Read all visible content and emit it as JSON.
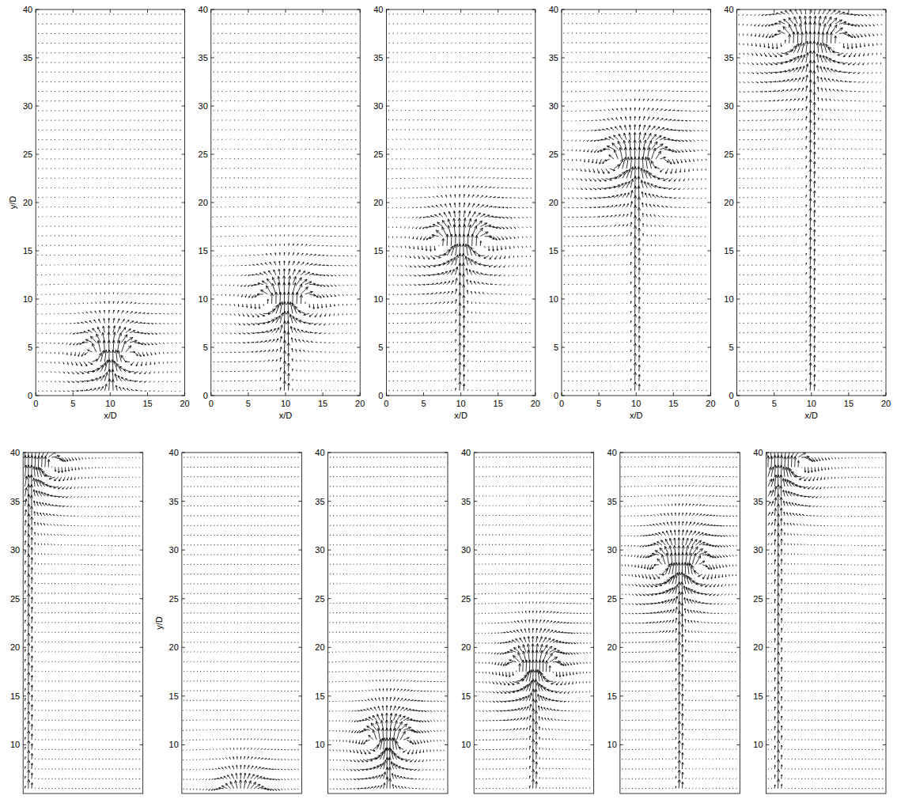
{
  "chart_data": [
    {
      "type": "quiver",
      "x_label": "x/D",
      "y_label": "y/D",
      "xlim": [
        0,
        20
      ],
      "ylim": [
        0,
        40
      ],
      "xticks": [
        0,
        5,
        10,
        15,
        20
      ],
      "yticks": [
        0,
        5,
        10,
        15,
        20,
        25,
        30,
        35,
        40
      ],
      "jet_x": 10,
      "front_y": 6.5
    },
    {
      "type": "quiver",
      "x_label": "x/D",
      "xlim": [
        0,
        20
      ],
      "ylim": [
        0,
        40
      ],
      "xticks": [
        0,
        5,
        10,
        15,
        20
      ],
      "yticks": [
        0,
        5,
        10,
        15,
        20,
        25,
        30,
        35,
        40
      ],
      "jet_x": 10,
      "front_y": 12
    },
    {
      "type": "quiver",
      "x_label": "x/D",
      "xlim": [
        0,
        20
      ],
      "ylim": [
        0,
        40
      ],
      "xticks": [
        0,
        5,
        10,
        15,
        20
      ],
      "yticks": [
        0,
        5,
        10,
        15,
        20,
        25,
        30,
        35,
        40
      ],
      "jet_x": 10,
      "front_y": 18
    },
    {
      "type": "quiver",
      "x_label": "x/D",
      "xlim": [
        0,
        20
      ],
      "ylim": [
        0,
        40
      ],
      "xticks": [
        0,
        5,
        10,
        15,
        20
      ],
      "yticks": [
        0,
        5,
        10,
        15,
        20,
        25,
        30,
        35,
        40
      ],
      "jet_x": 10,
      "front_y": 26.5
    },
    {
      "type": "quiver",
      "x_label": "x/D",
      "xlim": [
        0,
        20
      ],
      "ylim": [
        0,
        40
      ],
      "xticks": [
        0,
        5,
        10,
        15,
        20
      ],
      "yticks": [
        0,
        5,
        10,
        15,
        20,
        25,
        30,
        35,
        40
      ],
      "jet_x": 10,
      "front_y": 39
    },
    {
      "type": "quiver",
      "xlim": [
        0,
        20
      ],
      "ylim": [
        5,
        40
      ],
      "yticks": [
        10,
        15,
        20,
        25,
        30,
        35,
        40
      ],
      "tick_labels": "y",
      "jet_x": 1,
      "front_y": 41
    },
    {
      "type": "quiver",
      "y_label": "y/D",
      "xlim": [
        0,
        20
      ],
      "ylim": [
        5,
        40
      ],
      "yticks": [
        10,
        15,
        20,
        25,
        30,
        35,
        40
      ],
      "tick_labels": "y",
      "jet_x": 10,
      "front_y": 6
    },
    {
      "type": "quiver",
      "xlim": [
        0,
        20
      ],
      "ylim": [
        5,
        40
      ],
      "yticks": [
        10,
        15,
        20,
        25,
        30,
        35,
        40
      ],
      "tick_labels": "y",
      "jet_x": 10,
      "front_y": 12.5
    },
    {
      "type": "quiver",
      "xlim": [
        0,
        20
      ],
      "ylim": [
        5,
        40
      ],
      "yticks": [
        10,
        15,
        20,
        25,
        30,
        35,
        40
      ],
      "tick_labels": "y",
      "jet_x": 10,
      "front_y": 20
    },
    {
      "type": "quiver",
      "xlim": [
        0,
        20
      ],
      "ylim": [
        5,
        40
      ],
      "yticks": [
        10,
        15,
        20,
        25,
        30,
        35,
        40
      ],
      "tick_labels": "y",
      "jet_x": 10,
      "front_y": 30.5
    },
    {
      "type": "quiver",
      "xlim": [
        0,
        20
      ],
      "ylim": [
        5,
        40
      ],
      "yticks": [
        10,
        15,
        20,
        25,
        30,
        35,
        40
      ],
      "tick_labels": "y",
      "jet_x": 2,
      "front_y": 41
    }
  ]
}
